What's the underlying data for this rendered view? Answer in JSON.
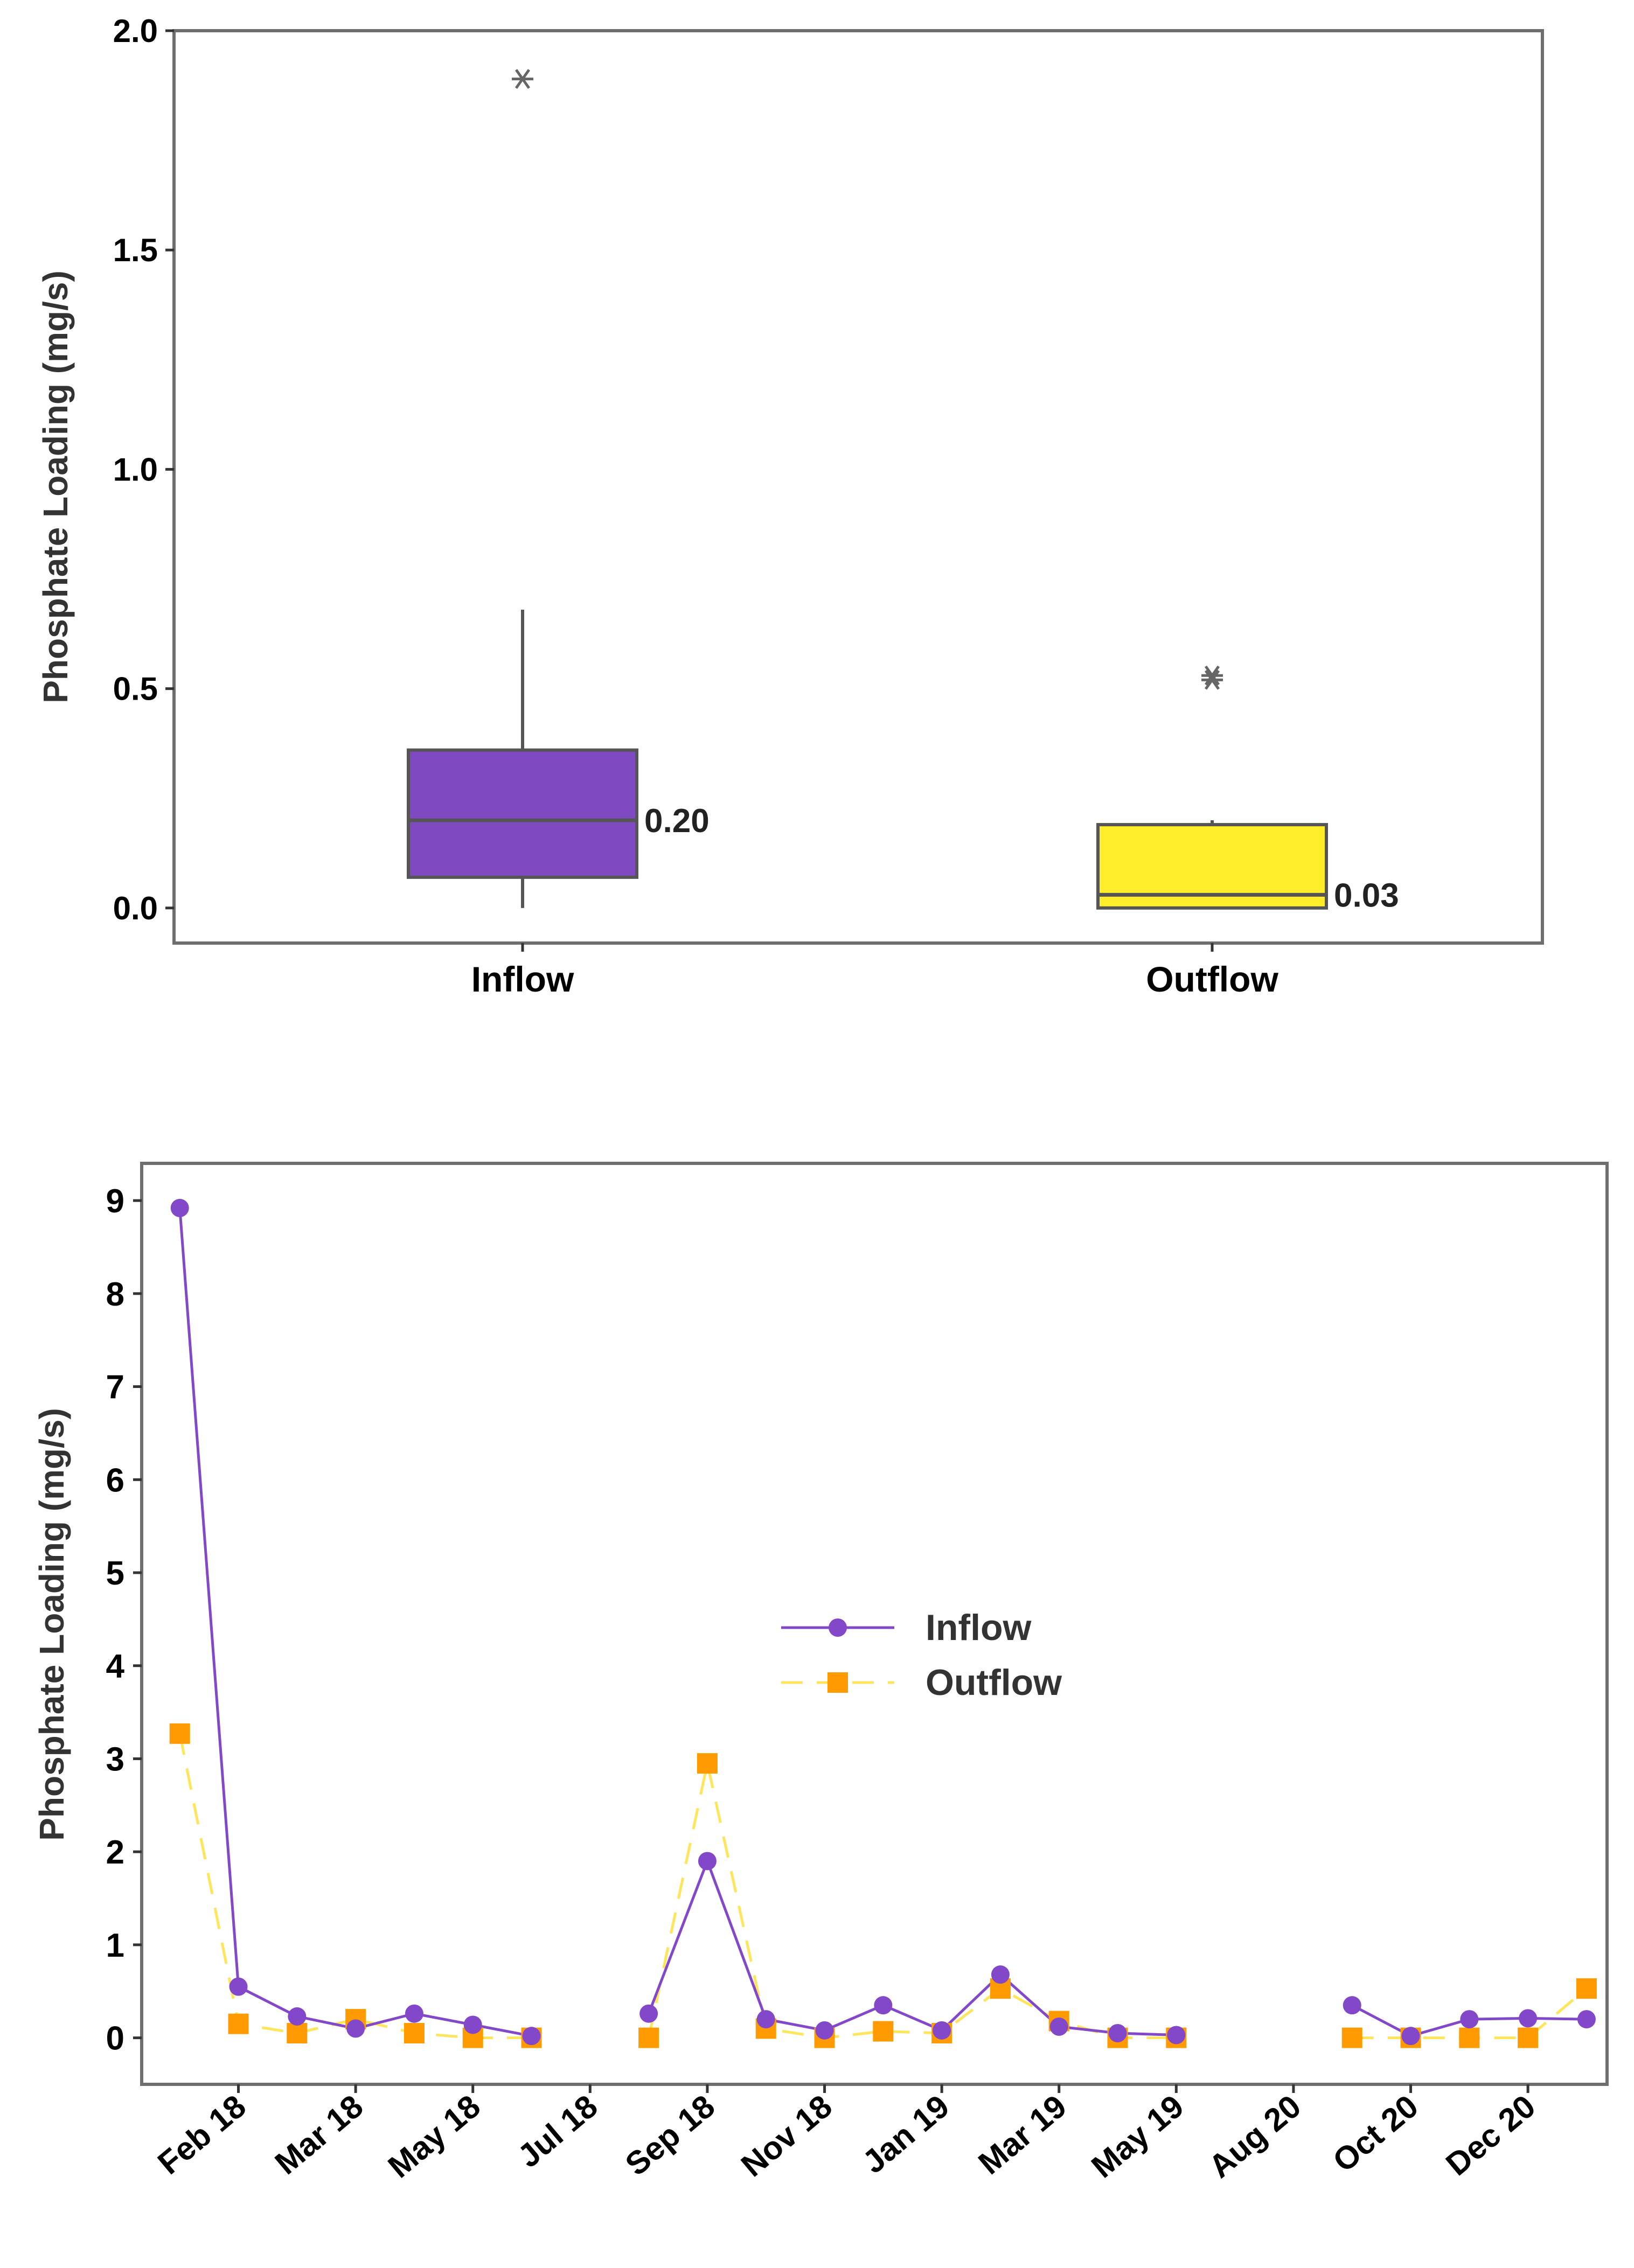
{
  "chart_data": [
    {
      "type": "box",
      "title": "",
      "ylabel": "Phosphate Loading (mg/s)",
      "xlabel": "",
      "ylim": [
        -0.08,
        2.0
      ],
      "yticks": [
        0.0,
        0.5,
        1.0,
        1.5,
        2.0
      ],
      "ytick_labels": [
        "0.0",
        "0.5",
        "1.0",
        "1.5",
        "2.0"
      ],
      "categories": [
        "Inflow",
        "Outflow"
      ],
      "boxes": [
        {
          "name": "Inflow",
          "q1": 0.07,
          "median": 0.2,
          "q3": 0.36,
          "whisker_low": 0.0,
          "whisker_high": 0.68,
          "outliers": [
            1.89
          ],
          "median_label": "0.20",
          "fill": "#7f4ac1"
        },
        {
          "name": "Outflow",
          "q1": 0.0,
          "median": 0.03,
          "q3": 0.19,
          "whisker_low": 0.0,
          "whisker_high": 0.2,
          "outliers": [
            0.52,
            0.53
          ],
          "median_label": "0.03",
          "fill": "#ffec2b"
        }
      ]
    },
    {
      "type": "line",
      "title": "",
      "ylabel": "Phosphate Loading (mg/s)",
      "xlabel": "",
      "ylim": [
        -0.5,
        9.4
      ],
      "yticks": [
        0,
        1,
        2,
        3,
        4,
        5,
        6,
        7,
        8,
        9
      ],
      "ytick_labels": [
        "0",
        "1",
        "2",
        "3",
        "4",
        "5",
        "6",
        "7",
        "8",
        "9"
      ],
      "x_range": [
        -0.65,
        24.35
      ],
      "x_ticks": [
        1,
        3,
        5,
        7,
        9,
        11,
        13,
        15,
        17,
        19,
        21,
        23
      ],
      "x_tick_labels": [
        "Feb 18",
        "Mar 18",
        "May 18",
        "Jul 18",
        "Sep 18",
        "Nov 18",
        "Jan 19",
        "Mar 19",
        "May 19",
        "Aug 20",
        "Oct 20",
        "Dec 20"
      ],
      "legend": {
        "position": "center",
        "entries": [
          "Inflow",
          "Outflow"
        ]
      },
      "series": [
        {
          "name": "Inflow",
          "color": "#8348c9",
          "marker": "circle",
          "line_style": "solid",
          "points": [
            [
              0,
              8.92
            ],
            [
              1,
              0.55
            ],
            [
              2,
              0.23
            ],
            [
              3,
              0.1
            ],
            [
              4,
              0.26
            ],
            [
              5,
              0.14
            ],
            [
              6,
              0.02
            ],
            null,
            [
              8,
              0.26
            ],
            [
              9,
              1.9
            ],
            [
              10,
              0.2
            ],
            [
              11,
              0.08
            ],
            [
              12,
              0.35
            ],
            [
              13,
              0.08
            ],
            [
              14,
              0.68
            ],
            [
              15,
              0.12
            ],
            [
              16,
              0.05
            ],
            [
              17,
              0.03
            ],
            null,
            null,
            [
              20,
              0.35
            ],
            [
              21,
              0.02
            ],
            [
              22,
              0.2
            ],
            [
              23,
              0.21
            ],
            [
              24,
              0.2
            ]
          ]
        },
        {
          "name": "Outflow",
          "color": "#ff9b00",
          "line_color": "#ffe55c",
          "marker": "square",
          "line_style": "dashed",
          "points": [
            [
              0,
              3.27
            ],
            [
              1,
              0.15
            ],
            [
              2,
              0.05
            ],
            [
              3,
              0.2
            ],
            [
              4,
              0.05
            ],
            [
              5,
              0.0
            ],
            [
              6,
              0.0
            ],
            null,
            [
              8,
              0.0
            ],
            [
              9,
              2.95
            ],
            [
              10,
              0.1
            ],
            [
              11,
              0.0
            ],
            [
              12,
              0.07
            ],
            [
              13,
              0.05
            ],
            [
              14,
              0.53
            ],
            [
              15,
              0.18
            ],
            [
              16,
              0.0
            ],
            [
              17,
              0.0
            ],
            null,
            null,
            [
              20,
              0.0
            ],
            [
              21,
              0.0
            ],
            [
              22,
              0.0
            ],
            [
              23,
              0.0
            ],
            [
              24,
              0.53
            ]
          ]
        }
      ]
    }
  ]
}
